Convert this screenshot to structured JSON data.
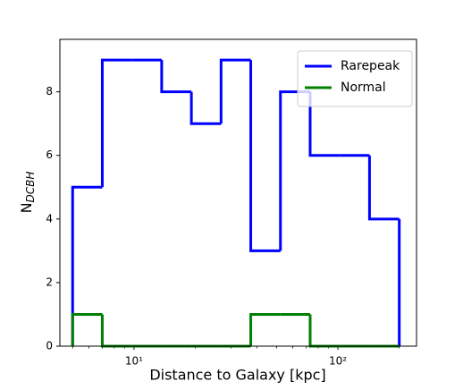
{
  "chart_data": {
    "type": "histogram-step",
    "xlabel": "Distance to Galaxy [kpc]",
    "ylabel": "N",
    "ylabel_sub": "DCBH",
    "bins": [
      5,
      6.99,
      9.78,
      13.67,
      19.12,
      26.73,
      37.38,
      52.27,
      73.09,
      102.2,
      142.9,
      200
    ],
    "series": [
      {
        "name": "Rarepeak",
        "color": "#0000ff",
        "values": [
          5,
          9,
          9,
          8,
          7,
          9,
          3,
          8,
          6,
          6,
          4
        ]
      },
      {
        "name": "Normal",
        "color": "#008000",
        "values": [
          1,
          0,
          0,
          0,
          0,
          0,
          1,
          1,
          0,
          0,
          0
        ]
      }
    ],
    "xscale": "log",
    "xlim": [
      4.33,
      243
    ],
    "xticks": [
      {
        "value": 10,
        "label": "10¹"
      },
      {
        "value": 100,
        "label": "10²"
      }
    ],
    "ylim": [
      0,
      9.65
    ],
    "yticks": [
      0,
      2,
      4,
      6,
      8
    ],
    "legend": "upper right"
  }
}
